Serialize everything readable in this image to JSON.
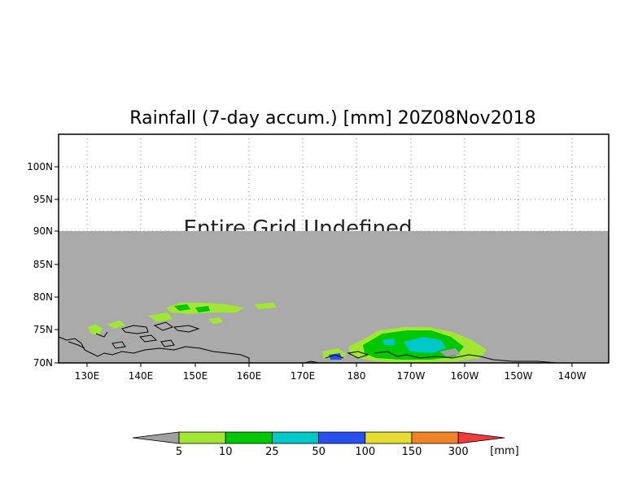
{
  "title": "Rainfall (7-day accum.) [mm] 20Z08Nov2018",
  "undefined_label": "Entire Grid Undefined",
  "lat_ticks": [
    "100N",
    "95N",
    "90N",
    "85N",
    "80N",
    "75N",
    "70N"
  ],
  "lon_ticks": [
    "130E",
    "140E",
    "150E",
    "160E",
    "170E",
    "180",
    "170W",
    "160W",
    "150W",
    "140W"
  ],
  "colorbar": {
    "labels": [
      "5",
      "10",
      "25",
      "50",
      "100",
      "150",
      "300"
    ],
    "unit": "[mm]",
    "colors": [
      "#a0a0a0",
      "#a0e632",
      "#00c800",
      "#00c8c8",
      "#2850f0",
      "#e6dc32",
      "#f08228",
      "#f03c3c"
    ]
  },
  "colors": {
    "undefined_fill": "#aaaaaa",
    "coastline": "#000000",
    "grid": "#888888"
  }
}
